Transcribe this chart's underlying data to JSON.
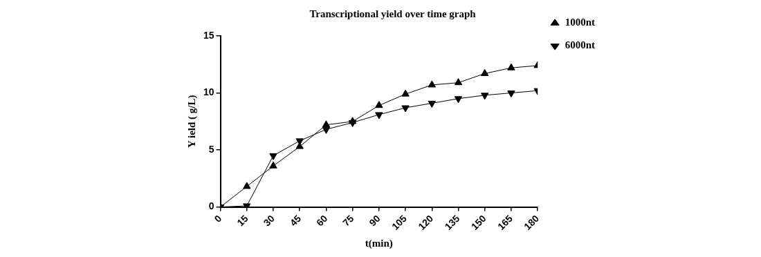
{
  "chart_data": {
    "type": "line",
    "title": "Transcriptional yield over time graph",
    "xlabel": "t(min)",
    "ylabel": "Y ield ( g/L)",
    "x": [
      0,
      15,
      30,
      45,
      60,
      75,
      90,
      105,
      120,
      135,
      150,
      165,
      180
    ],
    "series": [
      {
        "name": "1000nt",
        "color": "#000000",
        "marker": "triangle",
        "values": [
          0,
          1.8,
          3.6,
          5.3,
          7.2,
          7.5,
          8.9,
          9.9,
          10.7,
          10.9,
          11.7,
          12.2,
          12.4
        ]
      },
      {
        "name": "6000nt",
        "color": "#000000",
        "marker": "triangle-down",
        "values": [
          0,
          0.1,
          4.5,
          5.8,
          6.8,
          7.4,
          8.1,
          8.7,
          9.1,
          9.5,
          9.8,
          10.0,
          10.2
        ]
      }
    ],
    "xlim": [
      0,
      180
    ],
    "xticks": [
      0,
      15,
      30,
      45,
      60,
      75,
      90,
      105,
      120,
      135,
      150,
      165,
      180
    ],
    "ylim": [
      0,
      15
    ],
    "yticks": [
      0,
      5,
      10,
      15
    ],
    "grid": false,
    "legend": "top right",
    "line_style": "solid"
  }
}
